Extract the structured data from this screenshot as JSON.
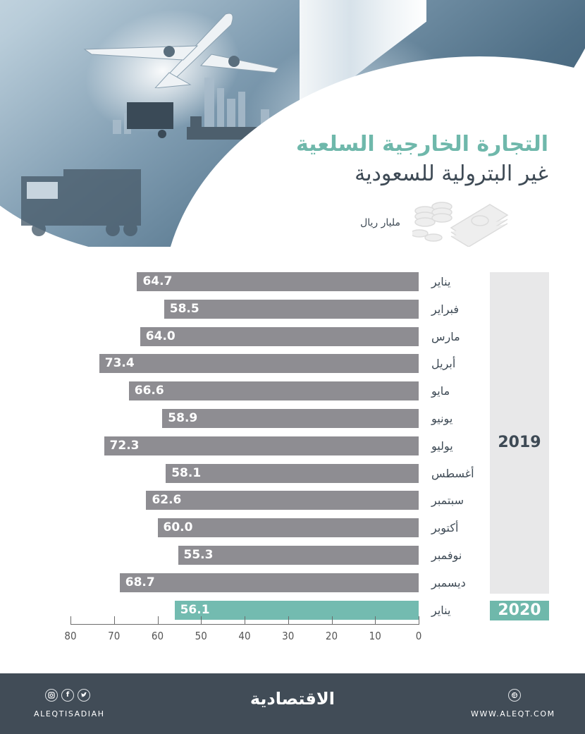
{
  "header": {
    "title_line1": "التجارة الخارجية السلعية",
    "title_line2": "غير البترولية للسعودية",
    "unit": "مليار ريال",
    "illustration_icons": [
      "airplane-icon",
      "city-skyline-icon",
      "truck-icon",
      "money-stack-icon"
    ]
  },
  "colors": {
    "bar_2019": "#8e8d92",
    "bar_2020": "#73bbb0",
    "title_accent": "#6fb8ab",
    "text_dark": "#3e4a55",
    "year_panel": "#e8e8e9",
    "footer_bg": "#414c57"
  },
  "chart_data": {
    "type": "bar",
    "orientation": "horizontal",
    "title": "التجارة الخارجية السلعية غير البترولية للسعودية",
    "unit": "مليار ريال",
    "categories": [
      "يناير",
      "فبراير",
      "مارس",
      "أبريل",
      "مايو",
      "يونيو",
      "يوليو",
      "أغسطس",
      "سبتمبر",
      "أكتوبر",
      "نوفمبر",
      "ديسمبر",
      "يناير"
    ],
    "groups": [
      {
        "name": "2019",
        "months": [
          "يناير",
          "فبراير",
          "مارس",
          "أبريل",
          "مايو",
          "يونيو",
          "يوليو",
          "أغسطس",
          "سبتمبر",
          "أكتوبر",
          "نوفمبر",
          "ديسمبر"
        ]
      },
      {
        "name": "2020",
        "months": [
          "يناير"
        ]
      }
    ],
    "series": [
      {
        "name": "2019",
        "values": [
          64.7,
          58.5,
          64.0,
          73.4,
          66.6,
          58.9,
          72.3,
          58.1,
          62.6,
          60.0,
          55.3,
          68.7
        ]
      },
      {
        "name": "2020",
        "values": [
          56.1
        ]
      }
    ],
    "values": [
      64.7,
      58.5,
      64.0,
      73.4,
      66.6,
      58.9,
      72.3,
      58.1,
      62.6,
      60.0,
      55.3,
      68.7,
      56.1
    ],
    "value_labels": [
      "64.7",
      "58.5",
      "64.0",
      "73.4",
      "66.6",
      "58.9",
      "72.3",
      "58.1",
      "62.6",
      "60.0",
      "55.3",
      "68.7",
      "56.1"
    ],
    "xlim": [
      0,
      80
    ],
    "x_ticks": [
      "80",
      "70",
      "60",
      "50",
      "40",
      "30",
      "20",
      "10",
      "0"
    ],
    "x_direction": "reversed (bars grow right-to-left)",
    "grid": false,
    "legend": "year blocks on right: 2019, 2020"
  },
  "year_labels": {
    "y2019": "2019",
    "y2020": "2020"
  },
  "footer": {
    "social_handle": "ALEQTISADIAH",
    "social_icons": [
      "instagram-icon",
      "facebook-icon",
      "twitter-icon"
    ],
    "logo_text": "الاقتصادية",
    "website": "WWW.ALEQT.COM",
    "website_icon": "globe-icon"
  }
}
